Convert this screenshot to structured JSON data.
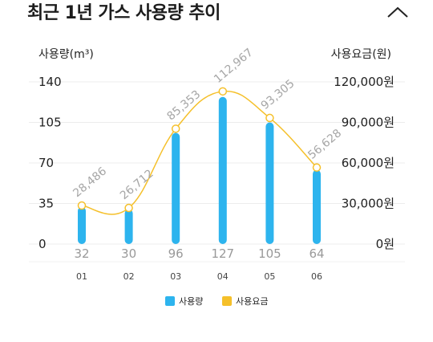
{
  "header": {
    "title": "최근 1년 가스 사용량 추이"
  },
  "chart_data": {
    "type": "bar",
    "categories": [
      "01",
      "02",
      "03",
      "04",
      "05",
      "06"
    ],
    "series": [
      {
        "name": "사용량",
        "type": "bar",
        "axis": "left",
        "color": "#2db4ee",
        "values": [
          32,
          30,
          96,
          127,
          105,
          64
        ],
        "labels": [
          "32",
          "30",
          "96",
          "127",
          "105",
          "64"
        ]
      },
      {
        "name": "사용요금",
        "type": "line",
        "axis": "right",
        "color": "#f5c02a",
        "values": [
          28486,
          26712,
          85353,
          112967,
          93305,
          56628
        ],
        "labels": [
          "28,486",
          "26,712",
          "85,353",
          "112,967",
          "93,305",
          "56,628"
        ]
      }
    ],
    "y_left": {
      "label": "사용량(m³)",
      "range": [
        0,
        140
      ],
      "ticks": [
        0,
        35,
        70,
        105,
        140
      ],
      "tick_labels": [
        "0",
        "35",
        "70",
        "105",
        "140"
      ]
    },
    "y_right": {
      "label": "사용요금(원)",
      "range": [
        0,
        120000
      ],
      "ticks": [
        0,
        30000,
        60000,
        90000,
        120000
      ],
      "tick_labels": [
        "0원",
        "30,000원",
        "60,000원",
        "90,000원",
        "120,000원"
      ]
    },
    "grid": true,
    "legend_position": "bottom"
  }
}
